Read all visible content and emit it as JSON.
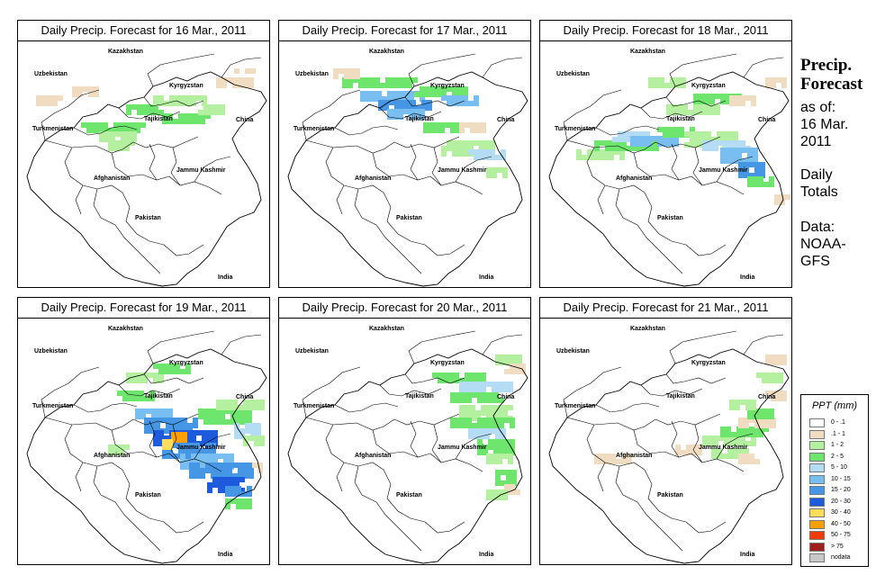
{
  "panels": [
    {
      "title": "Daily Precip. Forecast for  16 Mar., 2011"
    },
    {
      "title": "Daily Precip. Forecast for  17 Mar., 2011"
    },
    {
      "title": "Daily Precip. Forecast for  18 Mar., 2011"
    },
    {
      "title": "Daily Precip. Forecast for  19 Mar., 2011"
    },
    {
      "title": "Daily Precip. Forecast for  20 Mar., 2011"
    },
    {
      "title": "Daily Precip. Forecast for  21 Mar., 2011"
    }
  ],
  "map_labels": {
    "kazakhstan": "Kazakhstan",
    "uzbekistan": "Uzbekistan",
    "kyrgyzstan": "Kyrgyzstan",
    "tajikistan": "Tajikistan",
    "turkmenistan": "Turkmenistan",
    "china": "China",
    "afghanistan": "Afghanistan",
    "jammu_kashmir": "Jammu Kashmir",
    "pakistan": "Pakistan",
    "india": "India"
  },
  "sidebar": {
    "heading_line1": "Precip.",
    "heading_line2": "Forecast",
    "asof_line1": "as of:",
    "asof_line2": "16 Mar.",
    "asof_line3": "2011",
    "totals_line1": "Daily",
    "totals_line2": "Totals",
    "source_line1": "Data:",
    "source_line2": "NOAA-",
    "source_line3": "GFS"
  },
  "legend": {
    "title": "PPT (mm)",
    "items": [
      {
        "label": "0 - .1",
        "color": "#ffffff"
      },
      {
        "label": ".1 - 1",
        "color": "#f0dcc0"
      },
      {
        "label": "1 - 2",
        "color": "#b4f0a0"
      },
      {
        "label": "2 - 5",
        "color": "#6ee66e"
      },
      {
        "label": "5 - 10",
        "color": "#b4dcf5"
      },
      {
        "label": "10 - 15",
        "color": "#78bef0"
      },
      {
        "label": "15 - 20",
        "color": "#4696e6"
      },
      {
        "label": "20 - 30",
        "color": "#1e5adc"
      },
      {
        "label": "30 - 40",
        "color": "#ffdc5a"
      },
      {
        "label": "40 - 50",
        "color": "#ffa000"
      },
      {
        "label": "50 - 75",
        "color": "#f03c00"
      },
      {
        "label": "> 75",
        "color": "#a01e1e"
      },
      {
        "label": "nodata",
        "color": "#c8c8c8"
      }
    ]
  }
}
